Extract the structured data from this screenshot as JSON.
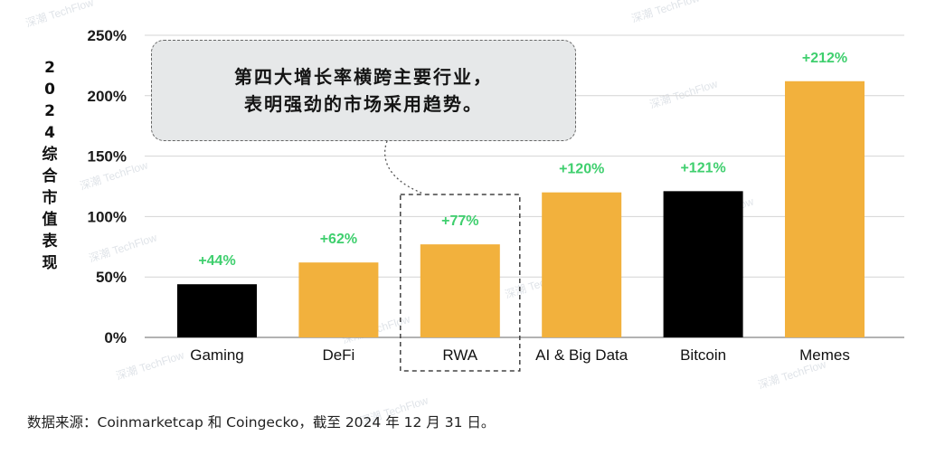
{
  "chart_data": {
    "type": "bar",
    "categories": [
      "Gaming",
      "DeFi",
      "RWA",
      "AI & Big Data",
      "Bitcoin",
      "Memes"
    ],
    "values": [
      44,
      62,
      77,
      120,
      121,
      212
    ],
    "data_labels": [
      "+44%",
      "+62%",
      "+77%",
      "+120%",
      "+121%",
      "+212%"
    ],
    "ylabel": "2024综合市值表现",
    "ylim": [
      0,
      250
    ],
    "yticks": [
      0,
      50,
      100,
      150,
      200,
      250
    ],
    "ytick_labels": [
      "0%",
      "50%",
      "100%",
      "150%",
      "200%",
      "250%"
    ],
    "grid": true,
    "bar_colors": [
      "#000000",
      "#f2b13d",
      "#f2b13d",
      "#f2b13d",
      "#000000",
      "#f2b13d"
    ],
    "data_label_color": "#3fcf6e",
    "highlight_category": "RWA",
    "annotation": {
      "lines": [
        "第四大增长率横跨主要行业，",
        "表明强劲的市场采用趋势。"
      ]
    }
  },
  "source_note": "数据来源：Coinmarketcap 和 Coingecko，截至 2024 年 12 月 31 日。",
  "watermark": "深潮 TechFlow"
}
